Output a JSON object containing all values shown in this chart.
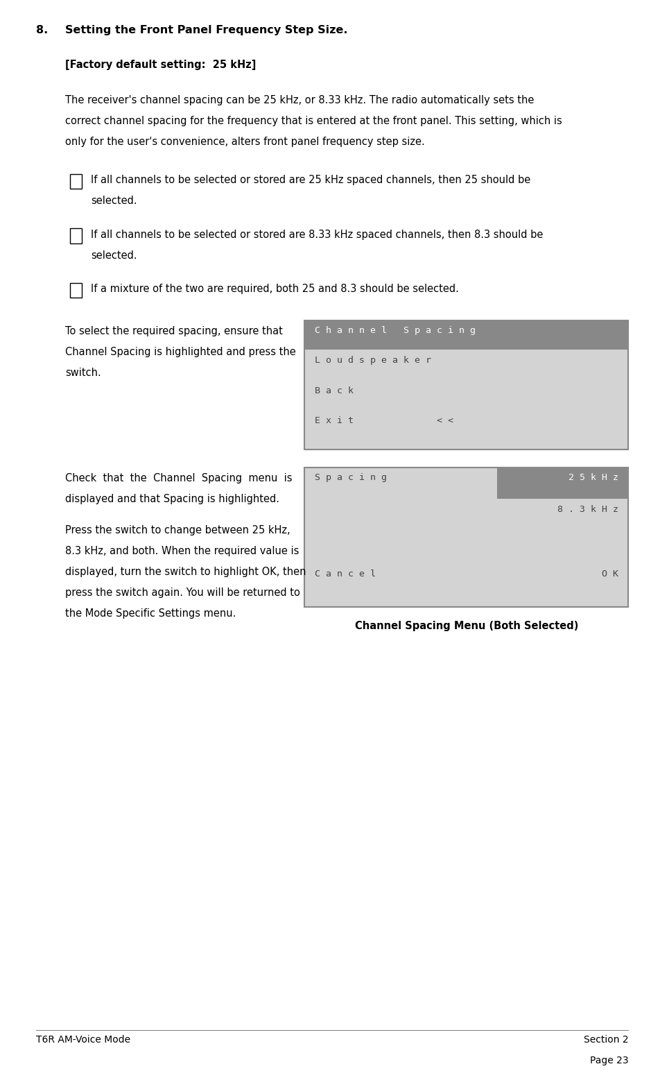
{
  "title_num": "8.",
  "title_text": "Setting the Front Panel Frequency Step Size.",
  "factory_default": "[Factory default setting:  25 kHz]",
  "para1_lines": [
    "The receiver's channel spacing can be 25 kHz, or 8.33 kHz. The radio automatically sets the",
    "correct channel spacing for the frequency that is entered at the front panel. This setting, which is",
    "only for the user's convenience, alters front panel frequency step size."
  ],
  "bullet1_lines": [
    "If all channels to be selected or stored are 25 kHz spaced channels, then 25 should be",
    "selected."
  ],
  "bullet2_lines": [
    "If all channels to be selected or stored are 8.33 kHz spaced channels, then 8.3 should be",
    "selected."
  ],
  "bullet3_lines": [
    "If a mixture of the two are required, both 25 and 8.3 should be selected."
  ],
  "left1_lines": [
    "To select the required spacing, ensure that",
    "Channel Spacing is highlighted and press the",
    "switch."
  ],
  "left2_lines": [
    "Check  that  the  Channel  Spacing  menu  is",
    "displayed and that Spacing is highlighted."
  ],
  "left3_lines": [
    "Press the switch to change between 25 kHz,",
    "8.3 kHz, and both. When the required value is",
    "displayed, turn the switch to highlight OK, then",
    "press the switch again. You will be returned to",
    "the Mode Specific Settings menu."
  ],
  "menu1_lines": [
    "C h a n n e l   S p a c i n g",
    "L o u d s p e a k e r",
    "B a c k",
    "E x i t               < <"
  ],
  "menu2_left_parts": [
    "S p a c i n g",
    "",
    "",
    "C a n c e l"
  ],
  "menu2_right_parts": [
    "2 5 k H z",
    "8 . 3 k H z",
    "",
    "O K"
  ],
  "menu2_highlight_line": 0,
  "caption": "Channel Spacing Menu (Both Selected)",
  "footer_left": "T6R AM-Voice Mode",
  "footer_right_line1": "Section 2",
  "footer_right_line2": "Page 23",
  "bg_color": "#ffffff",
  "menu_bg": "#d3d3d3",
  "menu_border": "#888888",
  "menu_highlight_bg": "#888888",
  "menu_highlight_fg": "#ffffff",
  "menu_text_color": "#444444",
  "body_font_size": 10.5,
  "title_font_size": 11.5,
  "menu_font_size": 9.5
}
